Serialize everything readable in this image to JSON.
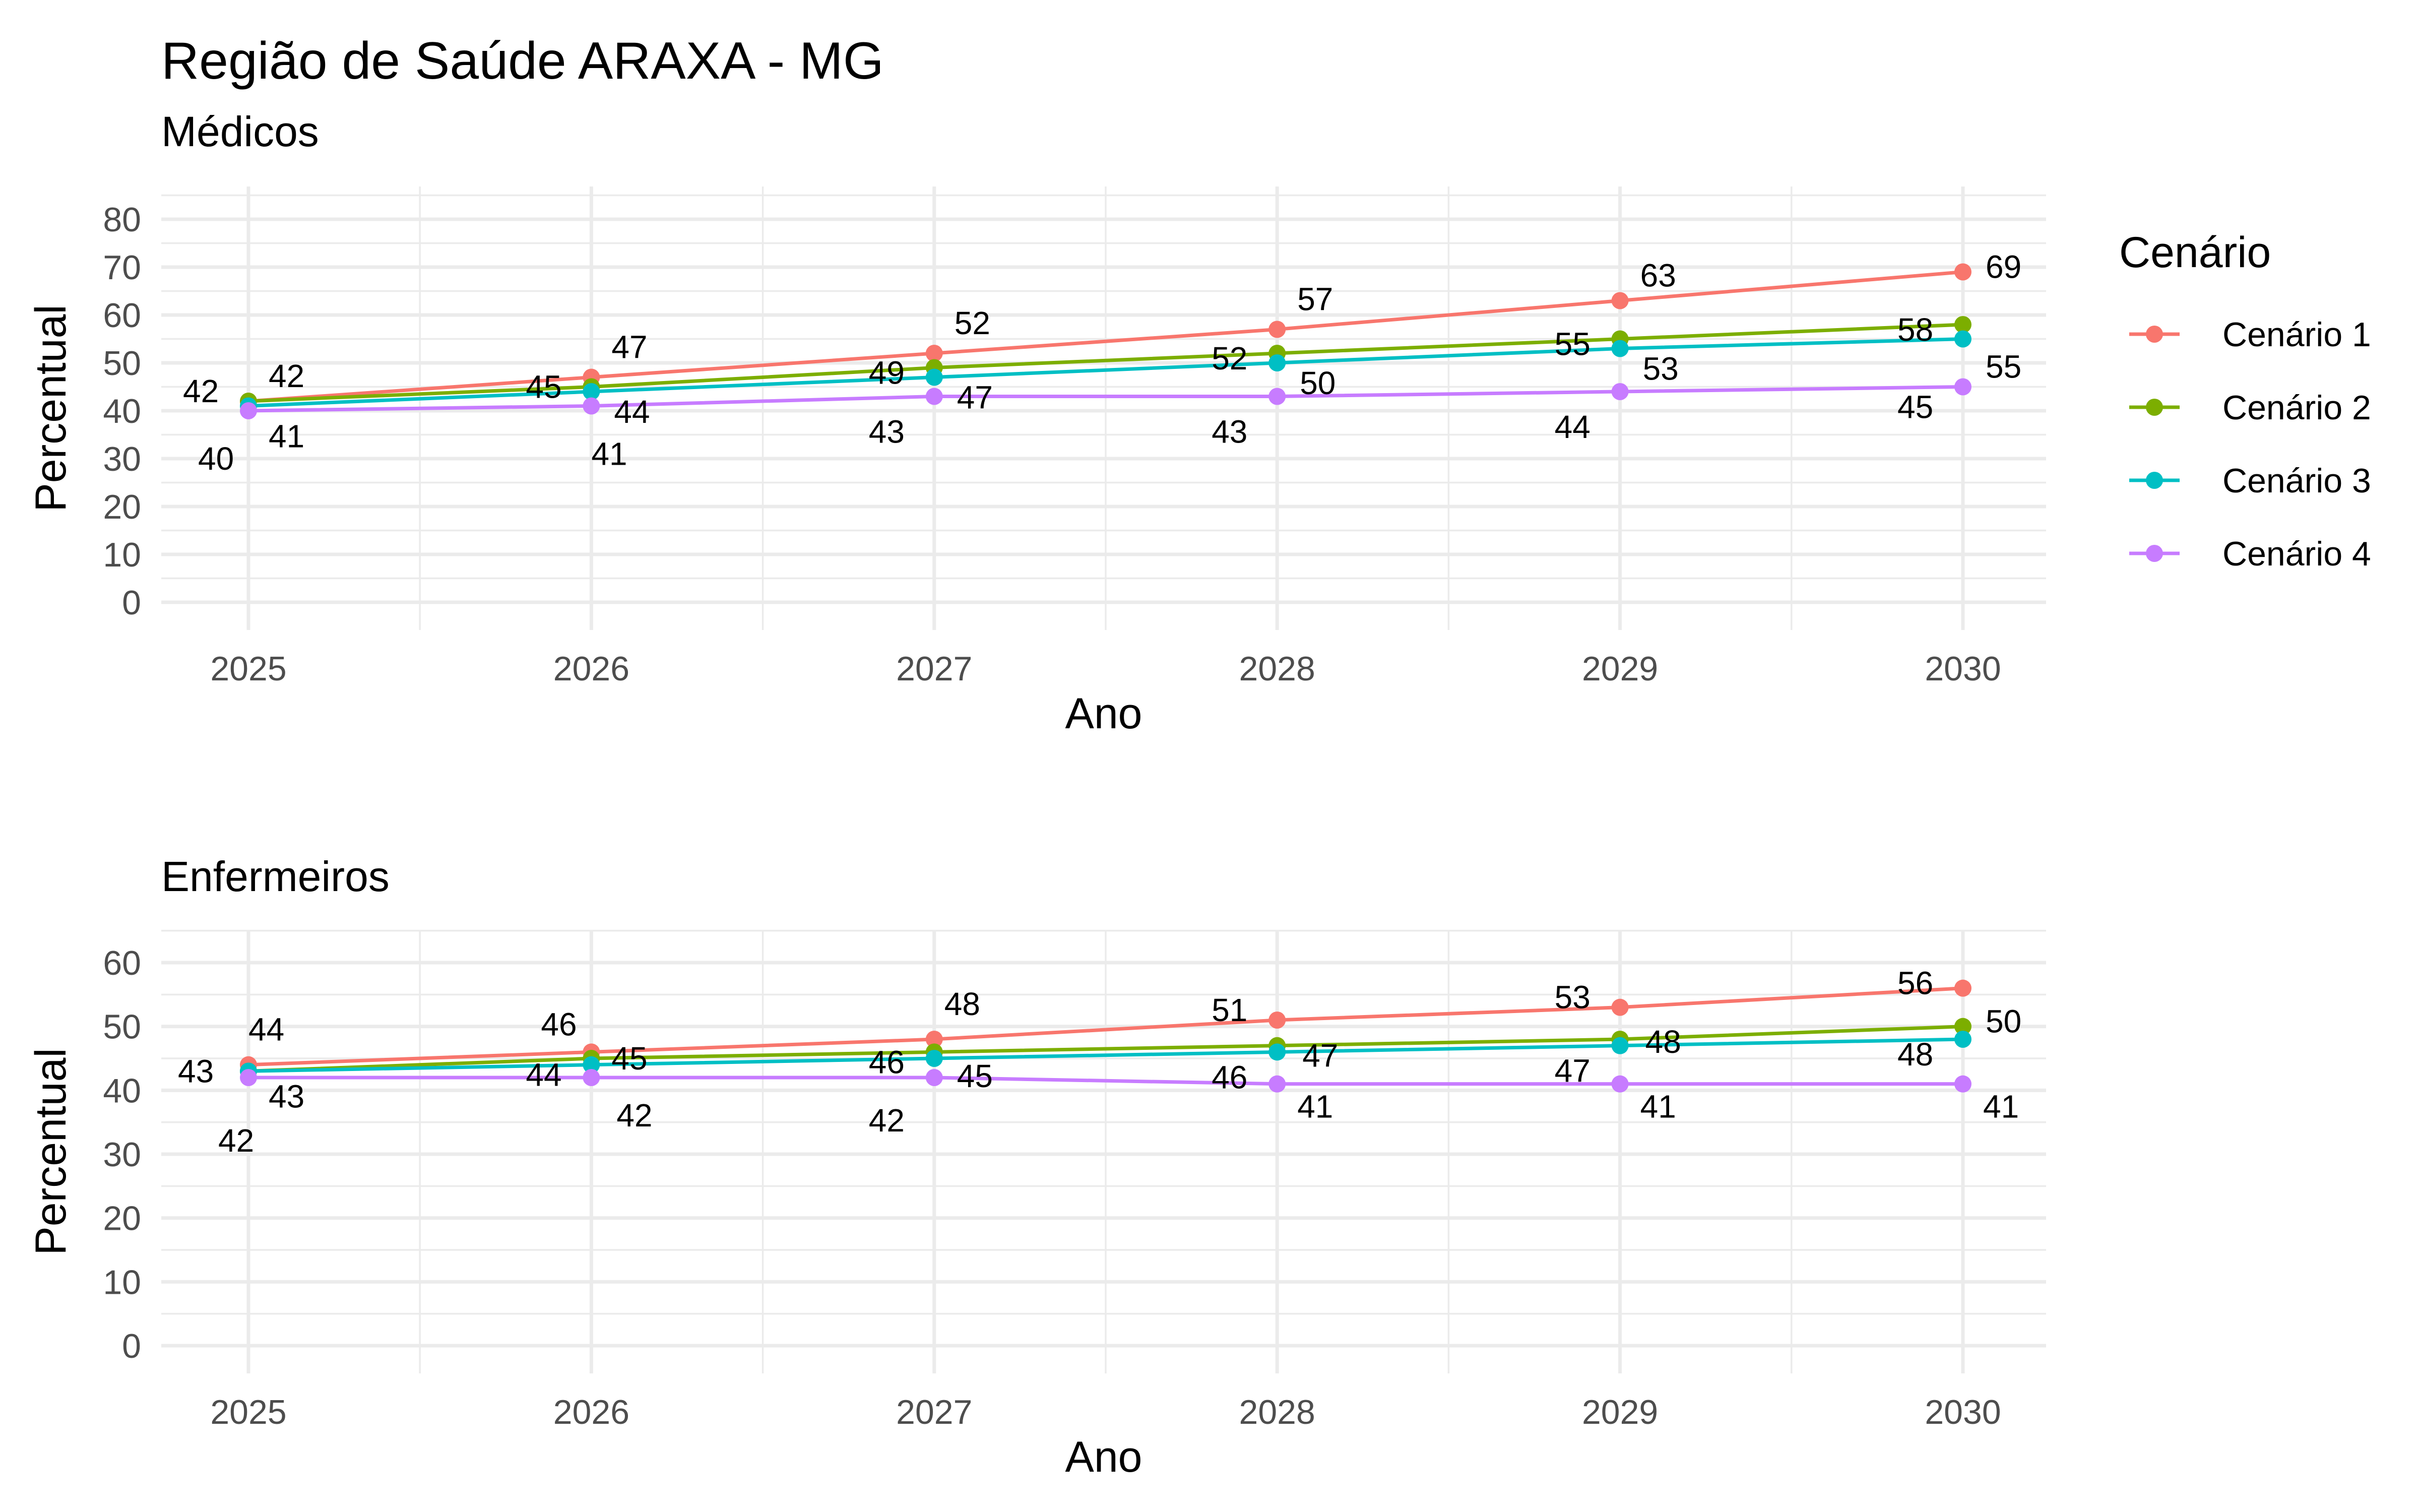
{
  "title": "Região de Saúde ARAXA - MG",
  "chart_data": [
    {
      "type": "line",
      "subtitle": "Médicos",
      "xlabel": "Ano",
      "ylabel": "Percentual",
      "x": [
        2025,
        2026,
        2027,
        2028,
        2029,
        2030
      ],
      "xticks": [
        "2025",
        "2026",
        "2027",
        "2028",
        "2029",
        "2030"
      ],
      "yticks": [
        0,
        10,
        20,
        30,
        40,
        50,
        60,
        70,
        80
      ],
      "ylim": [
        0,
        80
      ],
      "grid": true,
      "series": [
        {
          "name": "Cenário 1",
          "color": "#F8766D",
          "values": [
            42,
            47,
            52,
            57,
            63,
            69
          ]
        },
        {
          "name": "Cenário 2",
          "color": "#7CAE00",
          "values": [
            42,
            45,
            49,
            52,
            55,
            58
          ]
        },
        {
          "name": "Cenário 3",
          "color": "#00BFC4",
          "values": [
            41,
            44,
            47,
            50,
            53,
            55
          ]
        },
        {
          "name": "Cenário 4",
          "color": "#C77CFF",
          "values": [
            40,
            41,
            43,
            43,
            44,
            45
          ]
        }
      ]
    },
    {
      "type": "line",
      "subtitle": "Enfermeiros",
      "xlabel": "Ano",
      "ylabel": "Percentual",
      "x": [
        2025,
        2026,
        2027,
        2028,
        2029,
        2030
      ],
      "xticks": [
        "2025",
        "2026",
        "2027",
        "2028",
        "2029",
        "2030"
      ],
      "yticks": [
        0,
        10,
        20,
        30,
        40,
        50,
        60
      ],
      "ylim": [
        0,
        60
      ],
      "grid": true,
      "series": [
        {
          "name": "Cenário 1",
          "color": "#F8766D",
          "values": [
            44,
            46,
            48,
            51,
            53,
            56
          ]
        },
        {
          "name": "Cenário 2",
          "color": "#7CAE00",
          "values": [
            43,
            45,
            46,
            47,
            48,
            50
          ]
        },
        {
          "name": "Cenário 3",
          "color": "#00BFC4",
          "values": [
            43,
            44,
            45,
            46,
            47,
            48
          ]
        },
        {
          "name": "Cenário 4",
          "color": "#C77CFF",
          "values": [
            42,
            42,
            42,
            41,
            41,
            41
          ]
        }
      ]
    }
  ],
  "legend": {
    "title": "Cenário",
    "position": "right",
    "items": [
      "Cenário 1",
      "Cenário 2",
      "Cenário 3",
      "Cenário 4"
    ]
  }
}
